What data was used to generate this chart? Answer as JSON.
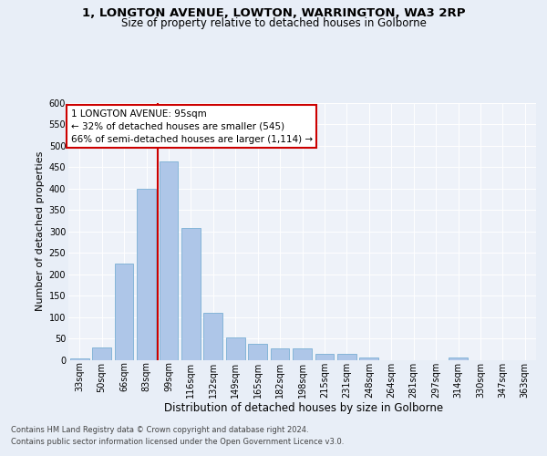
{
  "title1": "1, LONGTON AVENUE, LOWTON, WARRINGTON, WA3 2RP",
  "title2": "Size of property relative to detached houses in Golborne",
  "xlabel": "Distribution of detached houses by size in Golborne",
  "ylabel": "Number of detached properties",
  "categories": [
    "33sqm",
    "50sqm",
    "66sqm",
    "83sqm",
    "99sqm",
    "116sqm",
    "132sqm",
    "149sqm",
    "165sqm",
    "182sqm",
    "198sqm",
    "215sqm",
    "231sqm",
    "248sqm",
    "264sqm",
    "281sqm",
    "297sqm",
    "314sqm",
    "330sqm",
    "347sqm",
    "363sqm"
  ],
  "values": [
    5,
    30,
    225,
    400,
    462,
    307,
    110,
    54,
    39,
    28,
    28,
    14,
    14,
    6,
    0,
    0,
    0,
    6,
    0,
    0,
    0
  ],
  "bar_color": "#aec6e8",
  "bar_edge_color": "#7aafd4",
  "vline_idx": 4,
  "vline_color": "#cc0000",
  "annotation_text": "1 LONGTON AVENUE: 95sqm\n← 32% of detached houses are smaller (545)\n66% of semi-detached houses are larger (1,114) →",
  "annotation_box_color": "#ffffff",
  "annotation_box_edge": "#cc0000",
  "footer1": "Contains HM Land Registry data © Crown copyright and database right 2024.",
  "footer2": "Contains public sector information licensed under the Open Government Licence v3.0.",
  "bg_color": "#e8eef7",
  "plot_bg_color": "#eef2f9",
  "ylim": [
    0,
    600
  ],
  "yticks": [
    0,
    50,
    100,
    150,
    200,
    250,
    300,
    350,
    400,
    450,
    500,
    550,
    600
  ],
  "title1_fontsize": 9.5,
  "title2_fontsize": 8.5,
  "ylabel_fontsize": 8,
  "xlabel_fontsize": 8.5,
  "tick_fontsize": 7,
  "annotation_fontsize": 7.5,
  "footer_fontsize": 6
}
